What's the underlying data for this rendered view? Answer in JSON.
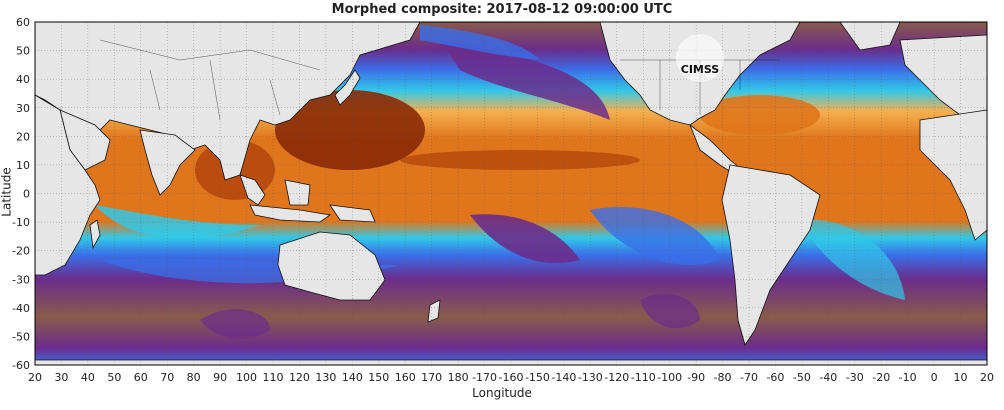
{
  "title": "Morphed composite: 2017-08-12 09:00:00 UTC",
  "xlabel": "Longitude",
  "ylabel": "Latitude",
  "x_ticks": [
    "20",
    "30",
    "40",
    "50",
    "60",
    "70",
    "80",
    "90",
    "100",
    "110",
    "120",
    "130",
    "140",
    "150",
    "160",
    "170",
    "180",
    "-170",
    "-160",
    "-150",
    "-140",
    "-130",
    "-120",
    "-110",
    "-100",
    "-90",
    "-80",
    "-70",
    "-60",
    "-50",
    "-40",
    "-30",
    "-20",
    "-10",
    "0",
    "10",
    "20"
  ],
  "y_ticks": [
    "60",
    "50",
    "40",
    "30",
    "20",
    "10",
    "0",
    "-10",
    "-20",
    "-30",
    "-40",
    "-50",
    "-60"
  ],
  "logo_text": "CIMSS",
  "colors": {
    "land": "#e6e6e6",
    "very_moist": "#8a2a05",
    "moist": "#e0761c",
    "mid": "#f5b050",
    "transition": "#6fe0a0",
    "cyan": "#31c8e8",
    "blue": "#3a6fe8",
    "dry_purple": "#6b2c8c",
    "dry_brown": "#8a5a4a"
  }
}
